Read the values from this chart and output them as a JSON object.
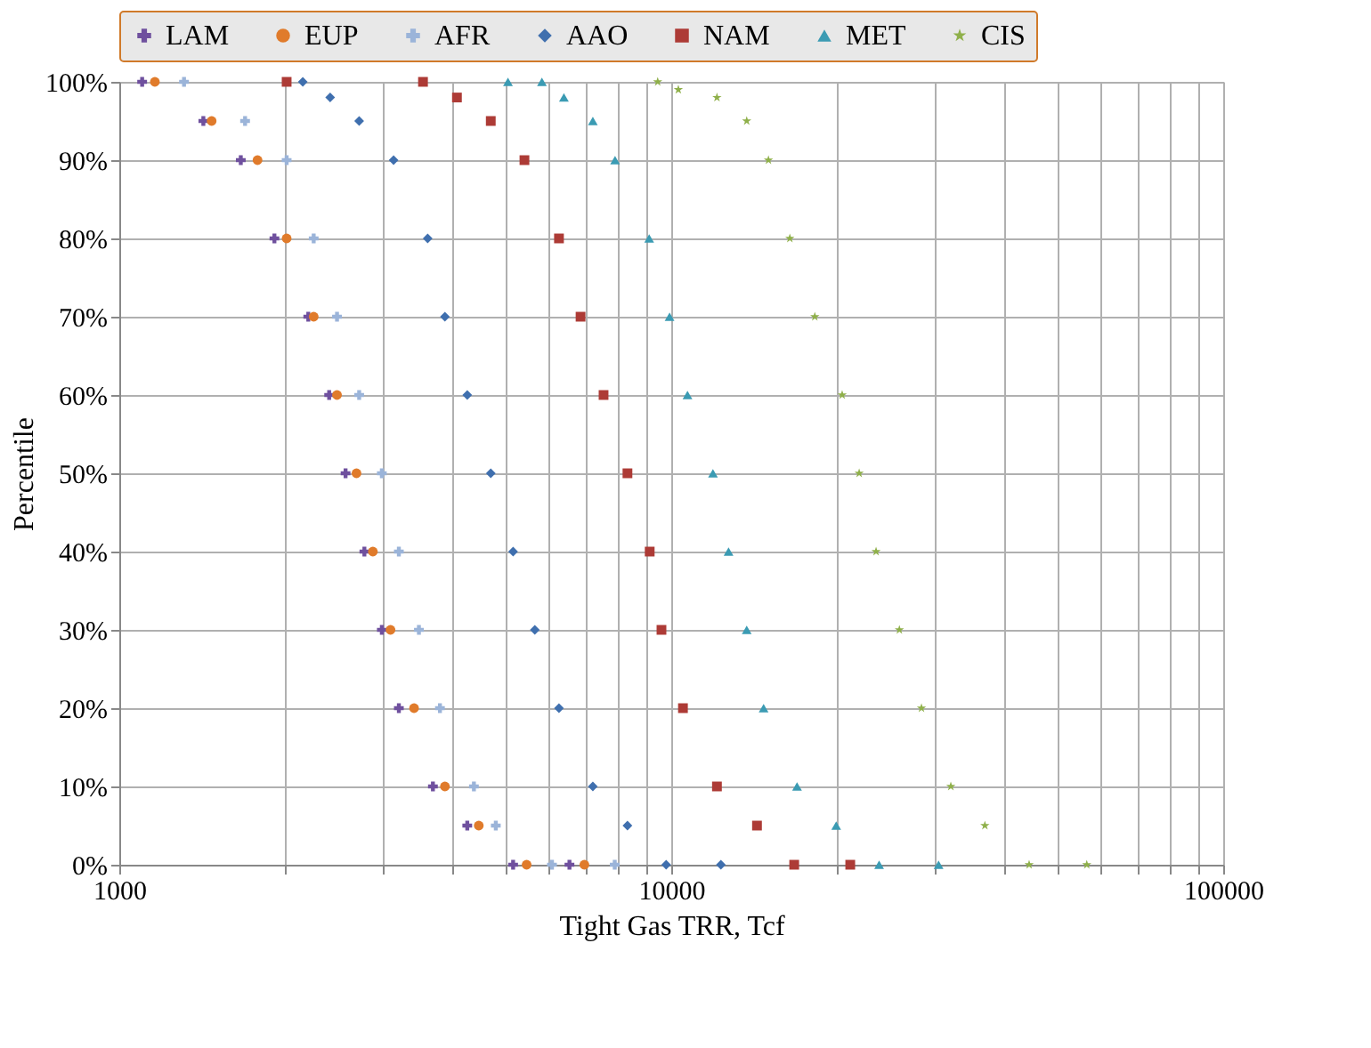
{
  "chart_data": {
    "type": "scatter",
    "xlabel": "Tight Gas TRR, Tcf",
    "ylabel": "Percentile",
    "log": "x",
    "grid": true,
    "legend": "top",
    "xlim": [
      1000,
      100000
    ],
    "ylim": [
      0,
      100
    ],
    "xticks": [
      1000,
      {
        "value": 2000,
        "label": null
      },
      {
        "value": 3000,
        "label": null
      },
      {
        "value": 4000,
        "label": null
      },
      {
        "value": 5000,
        "label": null
      },
      {
        "value": 6000,
        "label": null
      },
      {
        "value": 7000,
        "label": null
      },
      {
        "value": 8000,
        "label": null
      },
      {
        "value": 9000,
        "label": null
      },
      10000,
      {
        "value": 20000,
        "label": null
      },
      {
        "value": 30000,
        "label": null
      },
      {
        "value": 40000,
        "label": null
      },
      {
        "value": 50000,
        "label": null
      },
      {
        "value": 60000,
        "label": null
      },
      {
        "value": 70000,
        "label": null
      },
      {
        "value": 80000,
        "label": null
      },
      {
        "value": 90000,
        "label": null
      },
      100000
    ],
    "yticks": [
      {
        "value": 0,
        "label": "0%"
      },
      {
        "value": 10,
        "label": "10%"
      },
      {
        "value": 20,
        "label": "20%"
      },
      {
        "value": 30,
        "label": "30%"
      },
      {
        "value": 40,
        "label": "40%"
      },
      {
        "value": 50,
        "label": "50%"
      },
      {
        "value": 60,
        "label": "60%"
      },
      {
        "value": 70,
        "label": "70%"
      },
      {
        "value": 80,
        "label": "80%"
      },
      {
        "value": 90,
        "label": "90%"
      },
      {
        "value": 100,
        "label": "100%"
      }
    ],
    "series": [
      {
        "name": "LAM",
        "color": "#6f509e",
        "marker": "cross",
        "x": [
          1100,
          1420,
          1660,
          1910,
          2200,
          2400,
          2570,
          2780,
          2990,
          3210,
          3700,
          4270,
          5170,
          6540
        ],
        "values": [
          100,
          95,
          90,
          80,
          70,
          60,
          50,
          40,
          30,
          20,
          10,
          5,
          0,
          0
        ]
      },
      {
        "name": "EUP",
        "color": "#e07b2b",
        "marker": "circle",
        "x": [
          1160,
          1470,
          1780,
          2010,
          2250,
          2480,
          2690,
          2880,
          3100,
          3420,
          3890,
          4480,
          5470,
          6960
        ],
        "values": [
          100,
          95,
          90,
          80,
          70,
          60,
          50,
          40,
          30,
          20,
          10,
          5,
          0,
          0
        ]
      },
      {
        "name": "AFR",
        "color": "#9bb4d9",
        "marker": "cross",
        "x": [
          1310,
          1690,
          2010,
          2250,
          2480,
          2720,
          2990,
          3210,
          3490,
          3810,
          4390,
          4810,
          6080,
          7900
        ],
        "values": [
          100,
          95,
          90,
          80,
          70,
          60,
          50,
          40,
          30,
          20,
          10,
          5,
          0,
          0
        ]
      },
      {
        "name": "AAO",
        "color": "#3f6fae",
        "marker": "diamond",
        "x": [
          2150,
          2410,
          2720,
          3140,
          3620,
          3890,
          4270,
          4710,
          5170,
          5660,
          6260,
          7210,
          8330,
          9790,
          12300
        ],
        "values": [
          100,
          98,
          95,
          90,
          80,
          70,
          60,
          50,
          40,
          30,
          20,
          10,
          5,
          0,
          0
        ]
      },
      {
        "name": "NAM",
        "color": "#ad3b36",
        "marker": "square",
        "x": [
          2010,
          3550,
          4090,
          4710,
          5420,
          6260,
          6850,
          7540,
          8330,
          9140,
          9600,
          10500,
          12100,
          14300,
          16700,
          21100
        ],
        "values": [
          100,
          100,
          98,
          95,
          90,
          80,
          70,
          60,
          50,
          40,
          30,
          20,
          10,
          5,
          0,
          0
        ]
      },
      {
        "name": "MET",
        "color": "#3b9bb3",
        "marker": "triangle",
        "x": [
          5060,
          5830,
          6390,
          7210,
          7910,
          9120,
          9930,
          10700,
          11900,
          12700,
          13700,
          14700,
          16900,
          19900,
          23800,
          30500
        ],
        "values": [
          100,
          100,
          98,
          95,
          90,
          80,
          70,
          60,
          50,
          40,
          30,
          20,
          10,
          5,
          0,
          0
        ]
      },
      {
        "name": "CIS",
        "color": "#8fb04a",
        "marker": "star",
        "x": [
          9450,
          10300,
          12100,
          13700,
          15000,
          16400,
          18200,
          20400,
          21900,
          23500,
          25900,
          28400,
          32100,
          37000,
          44500,
          56600
        ],
        "values": [
          100,
          99,
          98,
          95,
          90,
          80,
          70,
          60,
          50,
          40,
          30,
          20,
          10,
          5,
          0,
          0
        ]
      }
    ]
  }
}
